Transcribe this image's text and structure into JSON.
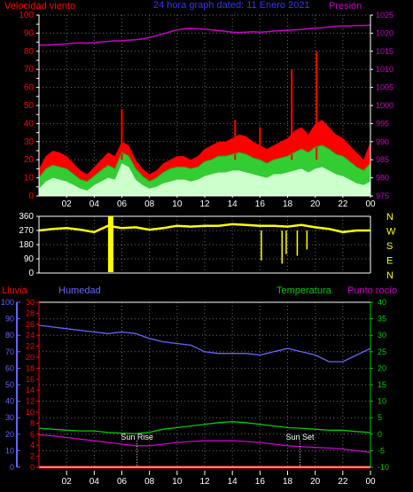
{
  "colors": {
    "background": "#000000",
    "axis": "#ffffff",
    "grid": "#6a6a6a",
    "wind_gust": "#ff0000",
    "wind_avg": "#33cc33",
    "wind_min": "#ccffcc",
    "pressure": "#cc00cc",
    "direction": "#ffff00",
    "rain": "#ff0000",
    "humidity": "#6666ff",
    "temperature": "#00cc00",
    "dew_point": "#cc00cc",
    "sun_marker": "#ffffff"
  },
  "chart_data": [
    {
      "type": "line",
      "panel": "wind_pressure",
      "title": "24 hora graph dated: 11 Enero 2021",
      "ylabel_left": "Velocidad viento",
      "ylabel_right": "Presión",
      "x_ticks": [
        "02",
        "04",
        "06",
        "08",
        "10",
        "12",
        "14",
        "16",
        "18",
        "20",
        "22",
        "00"
      ],
      "ylim_left": [
        0,
        100
      ],
      "y_ticks_left": [
        0,
        5,
        10,
        15,
        20,
        25,
        30,
        35,
        40,
        45,
        50,
        55,
        60,
        65,
        70,
        75,
        80,
        85,
        90,
        95,
        100
      ],
      "ylim_right": [
        975,
        1025
      ],
      "y_ticks_right": [
        975,
        980,
        985,
        990,
        995,
        1000,
        1005,
        1010,
        1015,
        1020,
        1025
      ],
      "x_hours": [
        0,
        0.5,
        1,
        1.5,
        2,
        2.5,
        3,
        3.5,
        4,
        4.5,
        5,
        5.5,
        6,
        6.5,
        7,
        7.5,
        8,
        8.5,
        9,
        9.5,
        10,
        10.5,
        11,
        11.5,
        12,
        12.5,
        13,
        13.5,
        14,
        14.5,
        15,
        15.5,
        16,
        16.5,
        17,
        17.5,
        18,
        18.5,
        19,
        19.5,
        20,
        20.5,
        21,
        21.5,
        22,
        22.5,
        23,
        23.5,
        24
      ],
      "series": [
        {
          "key": "gust",
          "values": [
            15,
            22,
            25,
            24,
            22,
            18,
            14,
            12,
            16,
            20,
            24,
            22,
            30,
            28,
            20,
            15,
            12,
            14,
            18,
            20,
            22,
            22,
            20,
            22,
            26,
            28,
            30,
            30,
            32,
            34,
            33,
            30,
            28,
            26,
            28,
            30,
            32,
            36,
            38,
            34,
            40,
            42,
            38,
            34,
            32,
            28,
            24,
            20,
            30
          ]
        },
        {
          "key": "avg",
          "values": [
            10,
            15,
            17,
            16,
            15,
            12,
            9,
            8,
            11,
            14,
            17,
            15,
            24,
            22,
            15,
            11,
            8,
            10,
            13,
            15,
            16,
            16,
            15,
            16,
            19,
            20,
            22,
            22,
            23,
            24,
            23,
            21,
            20,
            18,
            20,
            21,
            22,
            24,
            26,
            24,
            27,
            28,
            26,
            23,
            22,
            19,
            16,
            14,
            18
          ]
        },
        {
          "key": "low",
          "values": [
            4,
            8,
            10,
            9,
            8,
            6,
            4,
            3,
            6,
            8,
            10,
            9,
            18,
            16,
            9,
            6,
            4,
            5,
            7,
            8,
            9,
            9,
            8,
            9,
            11,
            12,
            13,
            13,
            14,
            14,
            13,
            12,
            11,
            10,
            12,
            12,
            13,
            14,
            15,
            13,
            15,
            16,
            14,
            12,
            11,
            9,
            7,
            6,
            8
          ]
        },
        {
          "key": "pressure",
          "values": [
            1016.7,
            1016.7,
            1016.8,
            1016.9,
            1017.0,
            1017.2,
            1017.3,
            1017.2,
            1017.4,
            1017.6,
            1017.7,
            1017.9,
            1017.9,
            1018.1,
            1018.2,
            1018.4,
            1018.8,
            1019.3,
            1019.8,
            1020.4,
            1020.9,
            1021.2,
            1021.3,
            1021.2,
            1021.1,
            1020.9,
            1020.7,
            1020.5,
            1020.3,
            1020.2,
            1020.3,
            1020.4,
            1020.3,
            1020.4,
            1020.6,
            1020.7,
            1020.8,
            1020.9,
            1021.0,
            1021.2,
            1021.4,
            1021.5,
            1021.7,
            1021.9,
            1022.0,
            1022.0,
            1022.1,
            1022.1,
            1022.2
          ]
        }
      ],
      "spikes": [
        [
          18.3,
          70
        ],
        [
          20.1,
          80
        ],
        [
          6.0,
          48
        ],
        [
          16.0,
          38
        ],
        [
          14.2,
          42
        ]
      ]
    },
    {
      "type": "line",
      "panel": "wind_direction",
      "ylim": [
        0,
        360
      ],
      "y_ticks": [
        0,
        90,
        180,
        270,
        360
      ],
      "compass_labels": [
        "N",
        "W",
        "S",
        "E",
        "N"
      ],
      "x_hours": [
        0,
        1,
        2,
        3,
        4,
        5,
        6,
        7,
        8,
        9,
        10,
        11,
        12,
        13,
        14,
        15,
        16,
        17,
        18,
        19,
        20,
        21,
        22,
        23,
        24
      ],
      "values": [
        270,
        280,
        285,
        275,
        260,
        300,
        285,
        290,
        275,
        285,
        300,
        295,
        300,
        300,
        310,
        305,
        300,
        300,
        295,
        305,
        290,
        280,
        260,
        270,
        270
      ],
      "outliers": [
        [
          5.1,
          40
        ],
        [
          5.3,
          30
        ],
        [
          16.1,
          80
        ],
        [
          17.6,
          60
        ],
        [
          17.9,
          120
        ],
        [
          18.7,
          110
        ],
        [
          19.4,
          150
        ]
      ]
    },
    {
      "type": "line",
      "panel": "temperature_humidity",
      "labels": {
        "rain": "Lluvia",
        "humidity": "Humedad",
        "temperature": "Temperatura",
        "dew_point": "Punto rocío"
      },
      "humidity_ticks": [
        0,
        10,
        20,
        30,
        40,
        50,
        60,
        70,
        80,
        90,
        100
      ],
      "rain_ticks": [
        0,
        2,
        4,
        6,
        8,
        10,
        12,
        14,
        16,
        18,
        20,
        22,
        24,
        26,
        28,
        30
      ],
      "temp_ticks": [
        -10,
        -5,
        0,
        5,
        10,
        15,
        20,
        25,
        30,
        35,
        40
      ],
      "ylim_humidity": [
        0,
        100
      ],
      "ylim_temp": [
        -10,
        40
      ],
      "x_ticks": [
        "02",
        "04",
        "06",
        "08",
        "10",
        "12",
        "14",
        "16",
        "18",
        "20",
        "22",
        "00"
      ],
      "x_hours": [
        0,
        1,
        2,
        3,
        4,
        5,
        6,
        7,
        8,
        9,
        10,
        11,
        12,
        13,
        14,
        15,
        16,
        17,
        18,
        19,
        20,
        21,
        22,
        23,
        24
      ],
      "humidity": [
        86,
        85,
        84,
        83,
        82,
        81,
        82,
        81,
        78,
        76,
        75,
        74,
        70,
        69,
        69,
        69,
        68,
        70,
        72,
        70,
        68,
        64,
        64,
        68,
        72
      ],
      "temperature": [
        1.8,
        1.5,
        1.2,
        1.0,
        1.0,
        0.5,
        0.3,
        0.2,
        0.6,
        1.5,
        2.0,
        2.5,
        3.0,
        3.5,
        3.8,
        3.5,
        3.0,
        2.5,
        2.0,
        1.8,
        1.5,
        1.2,
        1.2,
        0.8,
        0.5
      ],
      "dew_point": [
        -0.2,
        -0.5,
        -1.0,
        -1.5,
        -2.0,
        -2.5,
        -3.0,
        -3.5,
        -3.5,
        -3.0,
        -2.5,
        -2.2,
        -2.0,
        -2.0,
        -2.0,
        -2.2,
        -2.5,
        -3.0,
        -3.5,
        -3.8,
        -4.0,
        -4.2,
        -4.5,
        -5.0,
        -5.5
      ],
      "rain": [
        0,
        0,
        0,
        0,
        0,
        0,
        0,
        0,
        0,
        0,
        0,
        0,
        0,
        0,
        0,
        0,
        0,
        0,
        0,
        0,
        0,
        0,
        0,
        0,
        0
      ],
      "annotations": [
        {
          "label": "Sun Rise",
          "hour": 7.1
        },
        {
          "label": "Sun Set",
          "hour": 18.9
        }
      ]
    }
  ]
}
